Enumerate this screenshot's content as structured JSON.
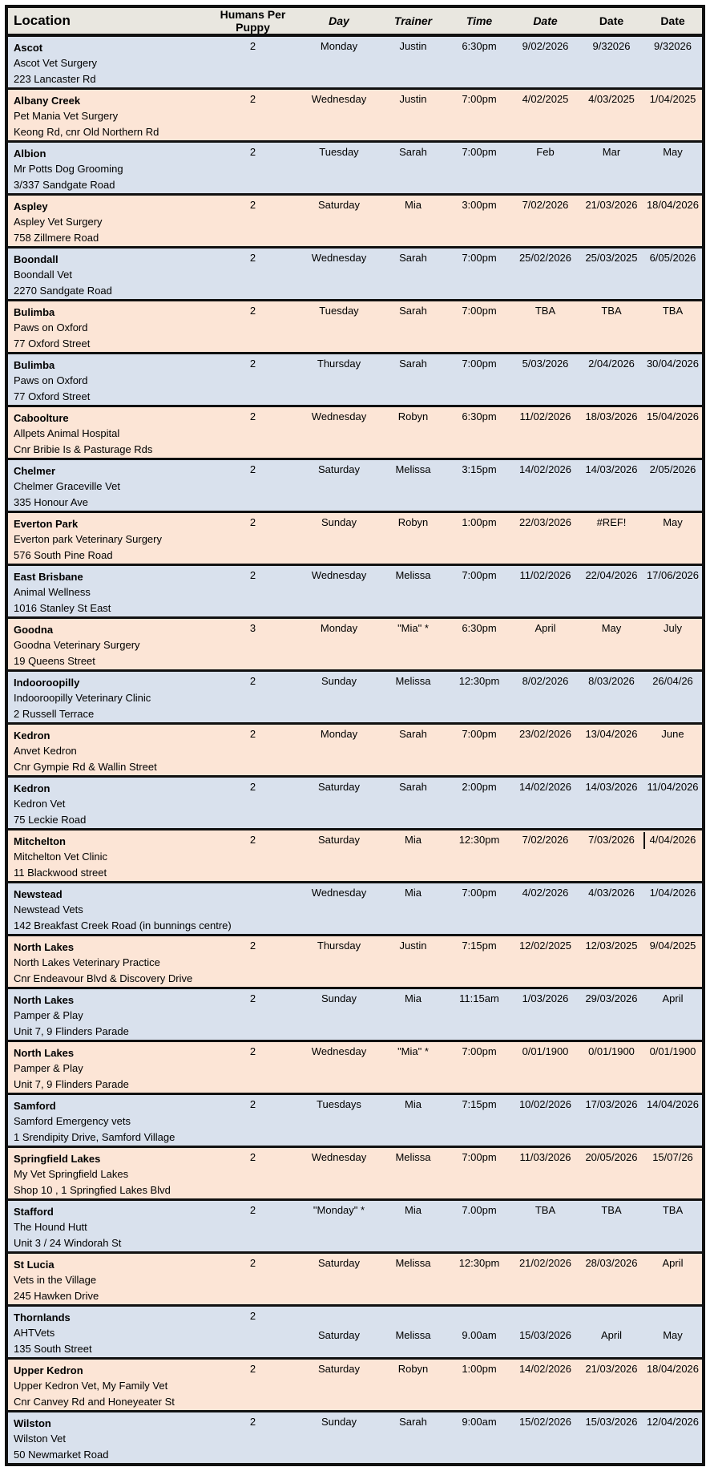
{
  "colors": {
    "row_blue": "#d9e1ed",
    "row_peach": "#fce5d6",
    "header_bg": "#e9e7e0",
    "border": "#111111"
  },
  "header": {
    "columns": [
      {
        "label": "Location",
        "italic": false
      },
      {
        "label": "Humans Per Puppy",
        "italic": false
      },
      {
        "label": "Day",
        "italic": true
      },
      {
        "label": "Trainer",
        "italic": true
      },
      {
        "label": "Time",
        "italic": true
      },
      {
        "label": "Date",
        "italic": true
      },
      {
        "label": "Date",
        "italic": false
      },
      {
        "label": "Date",
        "italic": false
      }
    ]
  },
  "rows": [
    {
      "location": "Ascot",
      "venue": "Ascot Vet Surgery",
      "address": "223 Lancaster Rd",
      "humans_per_puppy": "2",
      "day": "Monday",
      "trainer": "Justin",
      "time": "6:30pm",
      "date1": "9/02/2026",
      "date2": "9/32026",
      "date3": "9/32026"
    },
    {
      "location": "Albany Creek",
      "venue": "Pet Mania Vet Surgery",
      "address": "Keong Rd, cnr Old Northern Rd",
      "humans_per_puppy": "2",
      "day": "Wednesday",
      "trainer": "Justin",
      "time": "7:00pm",
      "date1": "4/02/2025",
      "date2": "4/03/2025",
      "date3": "1/04/2025"
    },
    {
      "location": "Albion",
      "venue": "Mr Potts Dog Grooming",
      "address": "3/337 Sandgate Road",
      "humans_per_puppy": "2",
      "day": "Tuesday",
      "trainer": "Sarah",
      "time": "7:00pm",
      "date1": "Feb",
      "date2": "Mar",
      "date3": "May"
    },
    {
      "location": "Aspley",
      "venue": "Aspley Vet Surgery",
      "address": "758 Zillmere Road",
      "humans_per_puppy": "2",
      "day": "Saturday",
      "trainer": "Mia",
      "time": "3:00pm",
      "date1": "7/02/2026",
      "date2": "21/03/2026",
      "date3": "18/04/2026"
    },
    {
      "location": "Boondall",
      "venue": "Boondall Vet",
      "address": "2270 Sandgate Road",
      "humans_per_puppy": "2",
      "day": "Wednesday",
      "trainer": "Sarah",
      "time": "7:00pm",
      "date1": "25/02/2026",
      "date2": "25/03/2025",
      "date3": "6/05/2026"
    },
    {
      "location": "Bulimba",
      "venue": "Paws on Oxford",
      "address": "77 Oxford Street",
      "humans_per_puppy": "2",
      "day": "Tuesday",
      "trainer": "Sarah",
      "time": "7:00pm",
      "date1": "TBA",
      "date2": "TBA",
      "date3": "TBA"
    },
    {
      "location": "Bulimba",
      "venue": "Paws on Oxford",
      "address": "77 Oxford Street",
      "humans_per_puppy": "2",
      "day": "Thursday",
      "trainer": "Sarah",
      "time": "7:00pm",
      "date1": "5/03/2026",
      "date2": "2/04/2026",
      "date3": "30/04/2026"
    },
    {
      "location": "Caboolture",
      "venue": "Allpets Animal Hospital",
      "address": "Cnr Bribie Is & Pasturage Rds",
      "humans_per_puppy": "2",
      "day": "Wednesday",
      "trainer": "Robyn",
      "time": "6:30pm",
      "date1": "11/02/2026",
      "date2": "18/03/2026",
      "date3": "15/04/2026"
    },
    {
      "location": "Chelmer",
      "venue": "Chelmer Graceville Vet",
      "address": "335 Honour Ave",
      "humans_per_puppy": "2",
      "day": "Saturday",
      "trainer": "Melissa",
      "time": "3:15pm",
      "date1": "14/02/2026",
      "date2": "14/03/2026",
      "date3": "2/05/2026"
    },
    {
      "location": "Everton Park",
      "venue": "Everton park Veterinary Surgery",
      "address": "576 South Pine Road",
      "humans_per_puppy": "2",
      "day": "Sunday",
      "trainer": "Robyn",
      "time": "1:00pm",
      "date1": "22/03/2026",
      "date2": "#REF!",
      "date3": "May"
    },
    {
      "location": "East Brisbane",
      "venue": "Animal Wellness",
      "address": "1016 Stanley St East",
      "humans_per_puppy": "2",
      "day": "Wednesday",
      "trainer": "Melissa",
      "time": "7:00pm",
      "date1": "11/02/2026",
      "date2": "22/04/2026",
      "date3": "17/06/2026"
    },
    {
      "location": "Goodna",
      "venue": "Goodna Veterinary Surgery",
      "address": "19 Queens Street",
      "humans_per_puppy": "3",
      "day": "Monday",
      "trainer": "\"Mia\" *",
      "time": "6:30pm",
      "date1": "April",
      "date2": "May",
      "date3": "July"
    },
    {
      "location": "Indooroopilly",
      "venue": "Indooroopilly Veterinary Clinic",
      "address": "2 Russell Terrace",
      "humans_per_puppy": "2",
      "day": "Sunday",
      "trainer": "Melissa",
      "time": "12:30pm",
      "date1": "8/02/2026",
      "date2": "8/03/2026",
      "date3": "26/04/26"
    },
    {
      "location": "Kedron",
      "venue": "Anvet Kedron",
      "address": "Cnr Gympie Rd & Wallin Street",
      "humans_per_puppy": "2",
      "day": "Monday",
      "trainer": "Sarah",
      "time": "7:00pm",
      "date1": "23/02/2026",
      "date2": "13/04/2026",
      "date3": "June"
    },
    {
      "location": "Kedron",
      "venue": "Kedron Vet",
      "address": "75 Leckie Road",
      "humans_per_puppy": "2",
      "day": "Saturday",
      "trainer": "Sarah",
      "time": "2:00pm",
      "date1": "14/02/2026",
      "date2": "14/03/2026",
      "date3": "11/04/2026"
    },
    {
      "location": "Mitchelton",
      "venue": "Mitchelton Vet Clinic",
      "address": "11 Blackwood street",
      "humans_per_puppy": "2",
      "day": "Saturday",
      "trainer": "Mia",
      "time": "12:30pm",
      "date1": "7/02/2026",
      "date2": "7/03/2026",
      "date3": "4/04/2026",
      "cursor_after_date2": true
    },
    {
      "location": "Newstead",
      "venue": "Newstead Vets",
      "address": "142 Breakfast Creek Road (in bunnings centre)",
      "humans_per_puppy": "",
      "day": "Wednesday",
      "trainer": "Mia",
      "time": "7:00pm",
      "date1": "4/02/2026",
      "date2": "4/03/2026",
      "date3": "1/04/2026"
    },
    {
      "location": "North Lakes",
      "venue": "North Lakes Veterinary Practice",
      "address": "Cnr Endeavour Blvd & Discovery Drive",
      "humans_per_puppy": "2",
      "day": "Thursday",
      "trainer": "Justin",
      "time": "7:15pm",
      "date1": "12/02/2025",
      "date2": "12/03/2025",
      "date3": "9/04/2025"
    },
    {
      "location": "North Lakes",
      "venue": "Pamper & Play",
      "address": "Unit 7, 9 Flinders Parade",
      "humans_per_puppy": "2",
      "day": "Sunday",
      "trainer": "Mia",
      "time": "11:15am",
      "date1": "1/03/2026",
      "date2": "29/03/2026",
      "date3": "April"
    },
    {
      "location": "North Lakes",
      "venue": "Pamper & Play",
      "address": "Unit 7, 9 Flinders Parade",
      "humans_per_puppy": "2",
      "day": "Wednesday",
      "trainer": "\"Mia\" *",
      "time": "7:00pm",
      "date1": "0/01/1900",
      "date2": "0/01/1900",
      "date3": "0/01/1900"
    },
    {
      "location": "Samford",
      "venue": "Samford Emergency vets",
      "address": "1 Srendipity Drive, Samford Village",
      "humans_per_puppy": "2",
      "day": "Tuesdays",
      "trainer": "Mia",
      "time": "7:15pm",
      "date1": "10/02/2026",
      "date2": "17/03/2026",
      "date3": "14/04/2026"
    },
    {
      "location": "Springfield Lakes",
      "venue": "My Vet Springfield Lakes",
      "address": "Shop 10 , 1 Springfied Lakes Blvd",
      "humans_per_puppy": "2",
      "day": "Wednesday",
      "trainer": "Melissa",
      "time": "7:00pm",
      "date1": "11/03/2026",
      "date2": "20/05/2026",
      "date3": "15/07/26"
    },
    {
      "location": "Stafford",
      "venue": "The Hound Hutt",
      "address": "Unit 3 / 24 Windorah St",
      "humans_per_puppy": "2",
      "day": "\"Monday\" *",
      "trainer": "Mia",
      "time": "7.00pm",
      "date1": "TBA",
      "date2": "TBA",
      "date3": "TBA"
    },
    {
      "location": "St Lucia",
      "venue": "Vets in the Village",
      "address": "245 Hawken Drive",
      "humans_per_puppy": "2",
      "day": "Saturday",
      "trainer": "Melissa",
      "time": "12:30pm",
      "date1": "21/02/2026",
      "date2": "28/03/2026",
      "date3": "April"
    },
    {
      "location": "Thornlands",
      "venue": "AHTVets",
      "address": "135 South Street",
      "humans_per_puppy": "2",
      "day": "Saturday",
      "trainer": "Melissa",
      "time": "9.00am",
      "date1": "15/03/2026",
      "date2": "April",
      "date3": "May",
      "values_on_second_line": true
    },
    {
      "location": "Upper Kedron",
      "venue": "Upper Kedron Vet, My Family Vet",
      "address": "Cnr Canvey Rd and Honeyeater St",
      "humans_per_puppy": "2",
      "day": "Saturday",
      "trainer": "Robyn",
      "time": "1:00pm",
      "date1": "14/02/2026",
      "date2": "21/03/2026",
      "date3": "18/04/2026"
    },
    {
      "location": "Wilston",
      "venue": "Wilston Vet",
      "address": "50 Newmarket Road",
      "humans_per_puppy": "2",
      "day": "Sunday",
      "trainer": "Sarah",
      "time": "9:00am",
      "date1": "15/02/2026",
      "date2": "15/03/2026",
      "date3": "12/04/2026"
    }
  ]
}
